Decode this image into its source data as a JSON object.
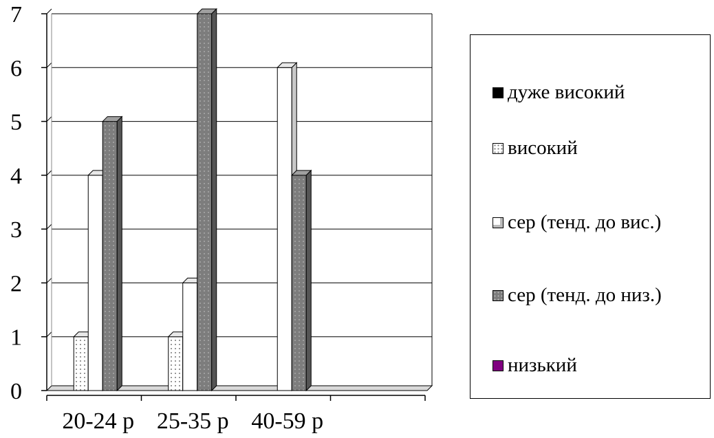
{
  "chart_data": {
    "type": "bar",
    "categories": [
      "20-24 р",
      "25-35 р",
      "40-59 р"
    ],
    "series": [
      {
        "name": "дуже високий",
        "values": [
          0,
          0,
          0
        ],
        "color": "#000000",
        "pattern": "solid"
      },
      {
        "name": "високий",
        "values": [
          1,
          1,
          0
        ],
        "color": "#ffffff",
        "pattern": "dots"
      },
      {
        "name": "сер (тенд. до вис.)",
        "values": [
          4,
          2,
          6
        ],
        "color": "#ffffff",
        "pattern": "plain"
      },
      {
        "name": "сер (тенд. до низ.)",
        "values": [
          5,
          7,
          4
        ],
        "color": "#808080",
        "pattern": "dots"
      },
      {
        "name": "низький",
        "values": [
          0,
          0,
          0
        ],
        "color": "#800080",
        "pattern": "solid"
      }
    ],
    "yticks": [
      "0",
      "1",
      "2",
      "3",
      "4",
      "5",
      "6",
      "7"
    ],
    "ylim": [
      0,
      7
    ],
    "grid": true,
    "legend": "right"
  }
}
